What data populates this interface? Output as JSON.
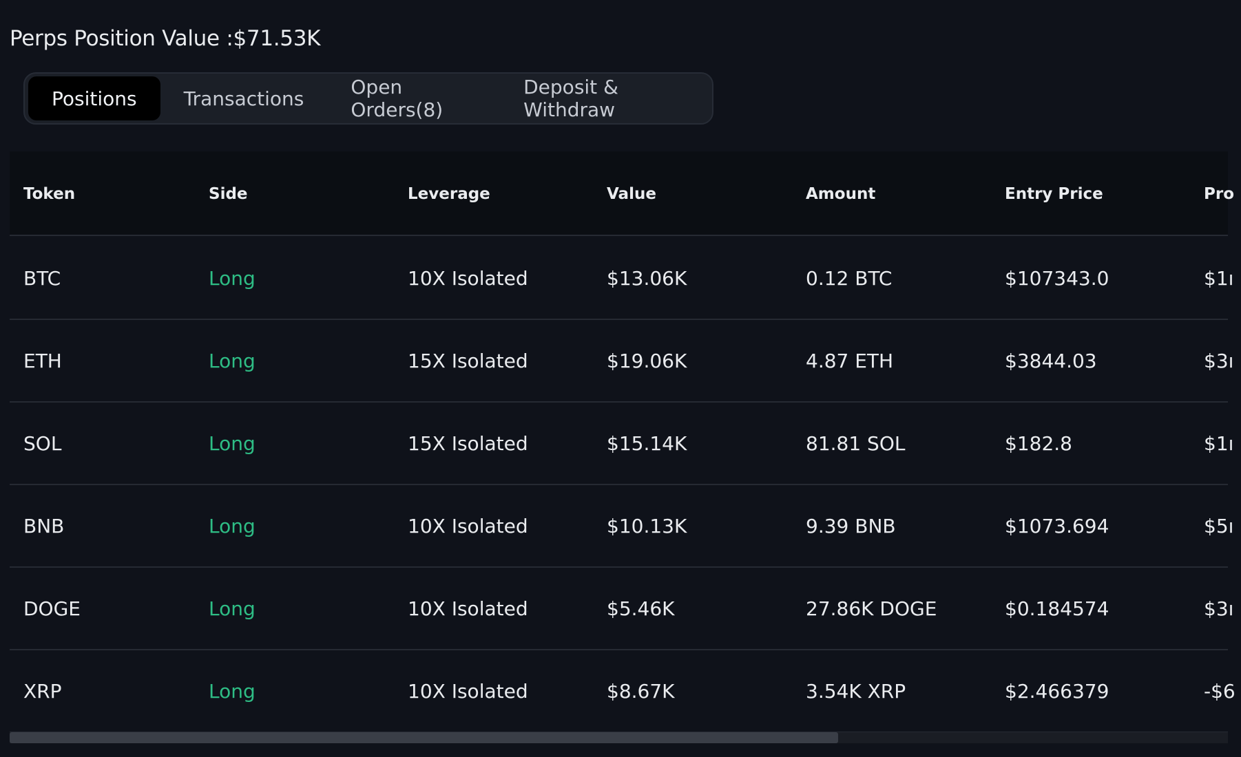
{
  "header": {
    "title": "Perps Position Value :$71.53K"
  },
  "tabs": [
    {
      "label": "Positions",
      "active": true
    },
    {
      "label": "Transactions",
      "active": false
    },
    {
      "label": "Open Orders(8)",
      "active": false
    },
    {
      "label": "Deposit & Withdraw",
      "active": false
    }
  ],
  "table": {
    "columns": [
      "Token",
      "Side",
      "Leverage",
      "Value",
      "Amount",
      "Entry Price",
      "Pro"
    ],
    "rows": [
      {
        "token": "BTC",
        "side": "Long",
        "leverage": "10X Isolated",
        "value": "$13.06K",
        "amount": "0.12 BTC",
        "entry_price": "$107343.0",
        "pro": "$1ı"
      },
      {
        "token": "ETH",
        "side": "Long",
        "leverage": "15X Isolated",
        "value": "$19.06K",
        "amount": "4.87 ETH",
        "entry_price": "$3844.03",
        "pro": "$3ı"
      },
      {
        "token": "SOL",
        "side": "Long",
        "leverage": "15X Isolated",
        "value": "$15.14K",
        "amount": "81.81 SOL",
        "entry_price": "$182.8",
        "pro": "$1ı"
      },
      {
        "token": "BNB",
        "side": "Long",
        "leverage": "10X Isolated",
        "value": "$10.13K",
        "amount": "9.39 BNB",
        "entry_price": "$1073.694",
        "pro": "$5ı"
      },
      {
        "token": "DOGE",
        "side": "Long",
        "leverage": "10X Isolated",
        "value": "$5.46K",
        "amount": "27.86K DOGE",
        "entry_price": "$0.184574",
        "pro": "$3ı"
      },
      {
        "token": "XRP",
        "side": "Long",
        "leverage": "10X Isolated",
        "value": "$8.67K",
        "amount": "3.54K XRP",
        "entry_price": "$2.466379",
        "pro": "-$6"
      }
    ]
  },
  "scroll": {
    "position_fraction": 0.0,
    "visible_fraction": 0.68
  },
  "colors": {
    "background": "#0f121a",
    "long": "#2ebd85",
    "header_bg": "#0b0e13",
    "tab_active_bg": "#000000"
  }
}
